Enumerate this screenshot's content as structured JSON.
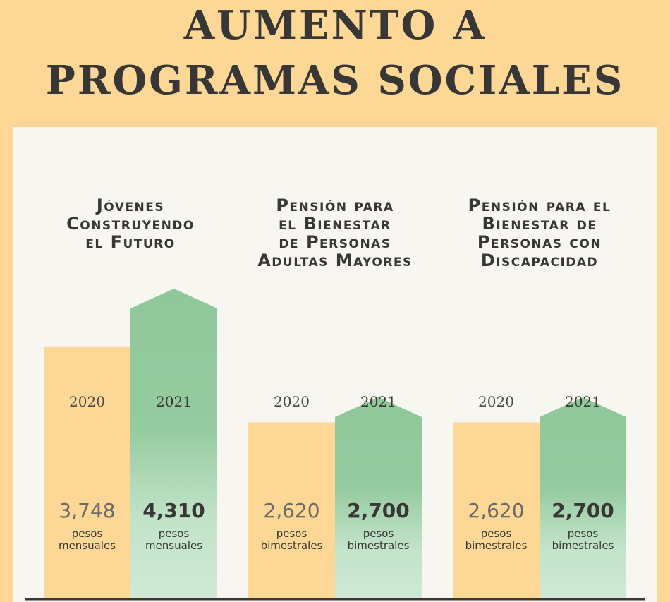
{
  "title": {
    "line1": "AUMENTO A",
    "line2": "PROGRAMAS SOCIALES"
  },
  "colors": {
    "background": "#fcd796",
    "panel": "#f7f6f1",
    "bar_2020": "#fcd796",
    "bar_2021_top": "#8fc79a",
    "bar_2021_bottom": "#cfe9d5",
    "text": "#383735"
  },
  "chart_data": {
    "type": "bar",
    "categories": [
      "Jóvenes Construyendo el Futuro",
      "Pensión para el Bienestar de Personas Adultas Mayores",
      "Pensión para el Bienestar de Personas con Discapacidad"
    ],
    "category_title_lines": [
      [
        "Jóvenes",
        "Construyendo",
        "el Futuro"
      ],
      [
        "Pensión para",
        "el Bienestar",
        "de Personas",
        "Adultas Mayores"
      ],
      [
        "Pensión para el",
        "Bienestar de",
        "Personas con",
        "Discapacidad"
      ]
    ],
    "series": [
      {
        "name": "2020",
        "values": [
          3748,
          2620,
          2620
        ],
        "value_labels": [
          "3,748",
          "2,620",
          "2,620"
        ]
      },
      {
        "name": "2021",
        "values": [
          4310,
          2700,
          2700
        ],
        "value_labels": [
          "4,310",
          "2,700",
          "2,700"
        ]
      }
    ],
    "units": [
      [
        "pesos",
        "mensuales"
      ],
      [
        "pesos",
        "bimestrales"
      ],
      [
        "pesos",
        "bimestrales"
      ]
    ]
  }
}
